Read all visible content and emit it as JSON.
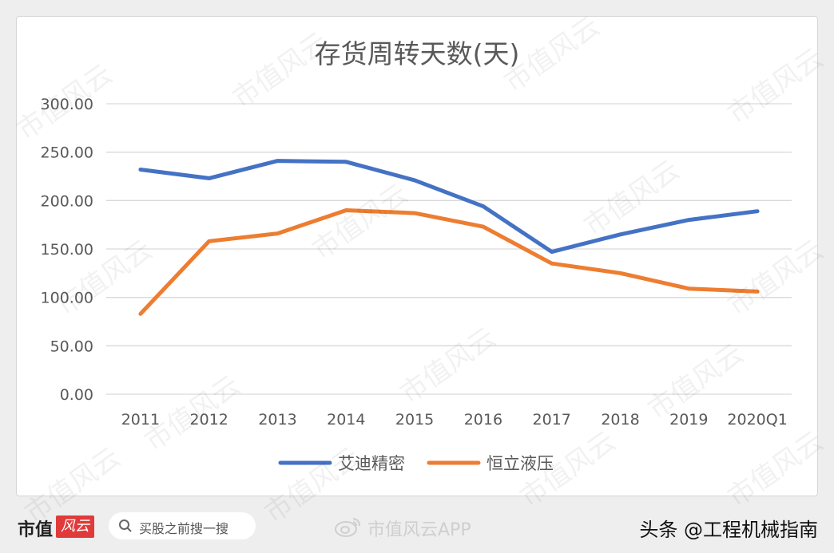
{
  "chart_data": {
    "type": "line",
    "title": "存货周转天数(天)",
    "categories": [
      "2011",
      "2012",
      "2013",
      "2014",
      "2015",
      "2016",
      "2017",
      "2018",
      "2019",
      "2020Q1"
    ],
    "series": [
      {
        "name": "艾迪精密",
        "color": "#4472C4",
        "values": [
          232,
          223,
          241,
          240,
          221,
          194,
          147,
          165,
          180,
          189
        ]
      },
      {
        "name": "恒立液压",
        "color": "#ED7D31",
        "values": [
          83,
          158,
          166,
          190,
          187,
          173,
          135,
          125,
          109,
          106
        ]
      }
    ],
    "y_ticks": [
      "0.00",
      "50.00",
      "100.00",
      "150.00",
      "200.00",
      "250.00",
      "300.00"
    ],
    "ylim": [
      0,
      300
    ],
    "grid": true,
    "legend_position": "bottom"
  },
  "watermark": "市值风云",
  "footer": {
    "brand_text": "市值",
    "brand_logo_text": "风云",
    "search_placeholder": "买股之前搜一搜",
    "weibo_handle": "市值风云APP",
    "credit": "头条 @工程机械指南"
  }
}
